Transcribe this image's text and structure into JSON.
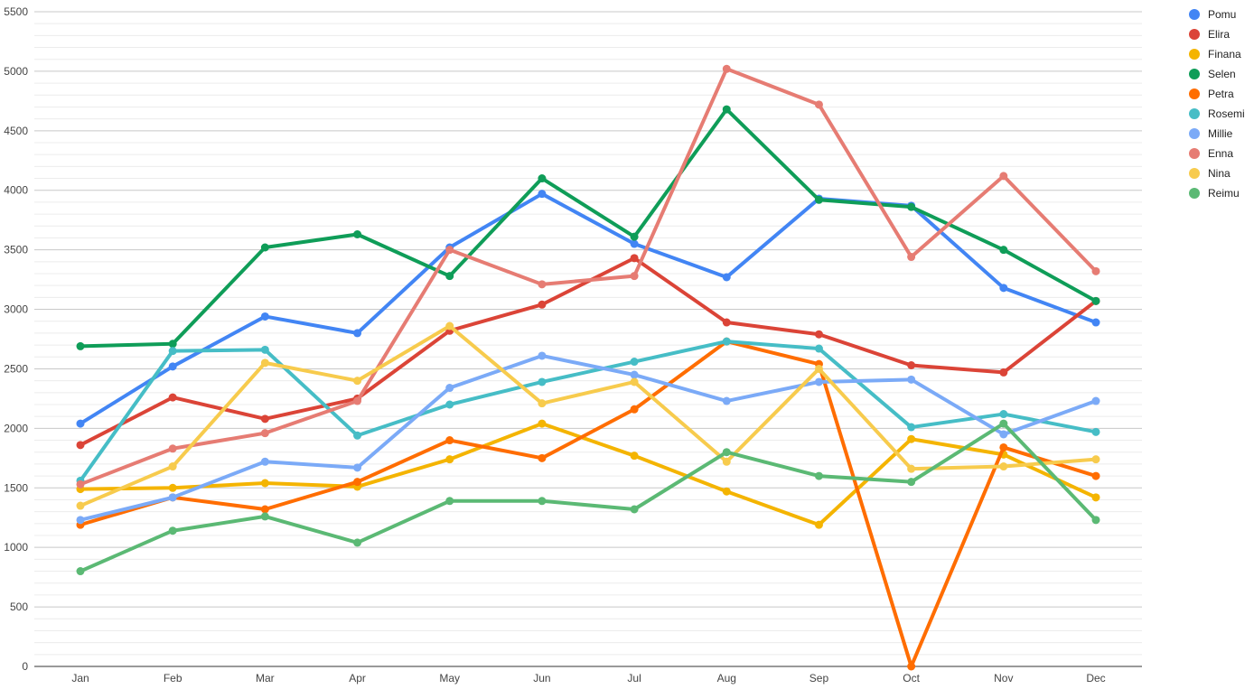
{
  "chart_data": {
    "type": "line",
    "categories": [
      "Jan",
      "Feb",
      "Mar",
      "Apr",
      "May",
      "Jun",
      "Jul",
      "Aug",
      "Sep",
      "Oct",
      "Nov",
      "Dec"
    ],
    "ylim": [
      0,
      5500
    ],
    "yticks": [
      0,
      500,
      1000,
      1500,
      2000,
      2500,
      3000,
      3500,
      4000,
      4500,
      5000,
      5500
    ],
    "grid": true,
    "legend_position": "right",
    "series": [
      {
        "name": "Pomu",
        "color": "#4285f4",
        "values": [
          2040,
          2520,
          2940,
          2800,
          3520,
          3970,
          3550,
          3270,
          3930,
          3870,
          3180,
          2890
        ]
      },
      {
        "name": "Elira",
        "color": "#db4437",
        "values": [
          1860,
          2260,
          2080,
          2250,
          2820,
          3040,
          3430,
          2890,
          2790,
          2530,
          2470,
          3070
        ]
      },
      {
        "name": "Finana",
        "color": "#f4b400",
        "values": [
          1490,
          1500,
          1540,
          1510,
          1740,
          2040,
          1770,
          1470,
          1190,
          1910,
          1780,
          1420
        ]
      },
      {
        "name": "Selen",
        "color": "#0f9d58",
        "values": [
          2690,
          2710,
          3520,
          3630,
          3280,
          4100,
          3610,
          4680,
          3920,
          3860,
          3500,
          3070
        ]
      },
      {
        "name": "Petra",
        "color": "#ff6d00",
        "values": [
          1190,
          1420,
          1320,
          1550,
          1900,
          1750,
          2160,
          2730,
          2540,
          0,
          1840,
          1600
        ]
      },
      {
        "name": "Rosemi",
        "color": "#46bdc6",
        "values": [
          1560,
          2650,
          2660,
          1940,
          2200,
          2390,
          2560,
          2730,
          2670,
          2010,
          2120,
          1970
        ]
      },
      {
        "name": "Millie",
        "color": "#7baaf7",
        "values": [
          1230,
          1420,
          1720,
          1670,
          2340,
          2610,
          2450,
          2230,
          2390,
          2410,
          1950,
          2230
        ]
      },
      {
        "name": "Enna",
        "color": "#e67c73",
        "values": [
          1530,
          1830,
          1960,
          2230,
          3500,
          3210,
          3280,
          5020,
          4720,
          3440,
          4120,
          3320
        ]
      },
      {
        "name": "Nina",
        "color": "#f7cb4d",
        "values": [
          1350,
          1680,
          2550,
          2400,
          2860,
          2210,
          2390,
          1720,
          2500,
          1660,
          1680,
          1740
        ]
      },
      {
        "name": "Reimu",
        "color": "#5bb974",
        "values": [
          800,
          1140,
          1260,
          1040,
          1390,
          1390,
          1320,
          1800,
          1600,
          1550,
          2040,
          1230
        ]
      }
    ]
  }
}
